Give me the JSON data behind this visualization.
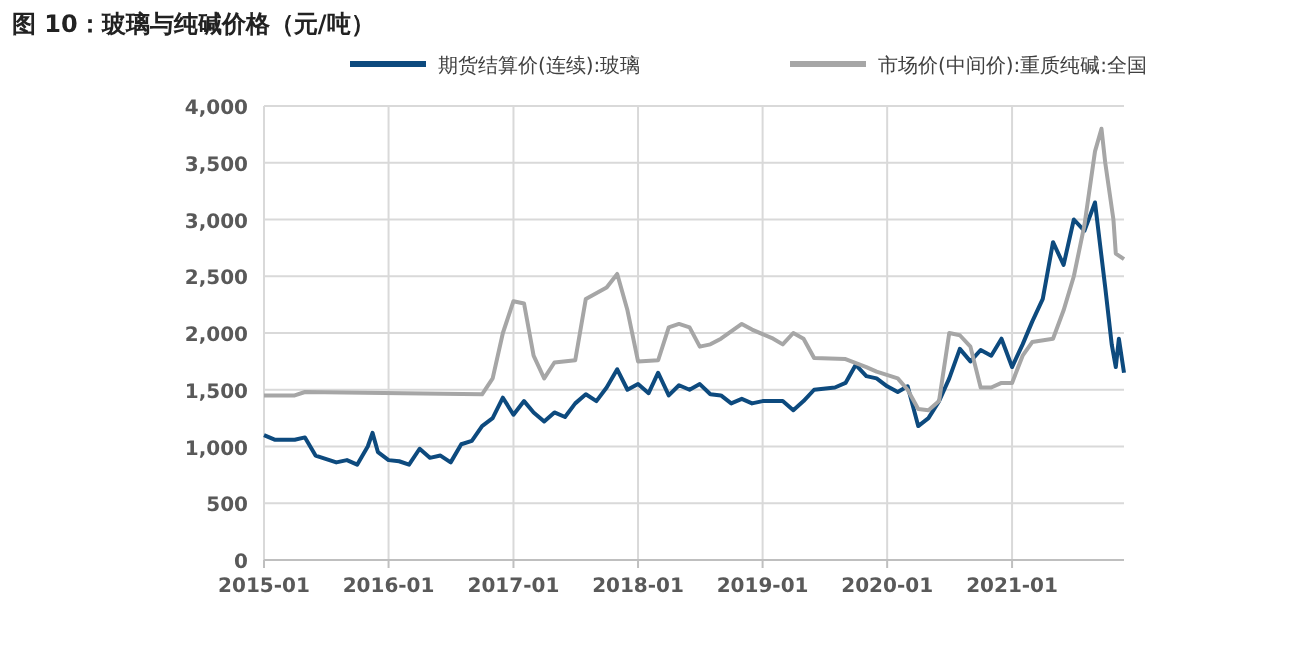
{
  "chart_data": {
    "type": "line",
    "title": "图 10：玻璃与纯碱价格（元/吨）",
    "xlim": [
      "2015-01-01",
      "2021-11-25"
    ],
    "xticks": [
      "2015-01",
      "2016-01",
      "2017-01",
      "2018-01",
      "2019-01",
      "2020-01",
      "2021-01"
    ],
    "ylim": [
      0,
      4000
    ],
    "yticks": [
      {
        "value": 0,
        "label": "0"
      },
      {
        "value": 500,
        "label": "500"
      },
      {
        "value": 1000,
        "label": "1,000"
      },
      {
        "value": 1500,
        "label": "1,500"
      },
      {
        "value": 2000,
        "label": "2,000"
      },
      {
        "value": 2500,
        "label": "2,500"
      },
      {
        "value": 3000,
        "label": "3,000"
      },
      {
        "value": 3500,
        "label": "3,500"
      },
      {
        "value": 4000,
        "label": "4,000"
      }
    ],
    "grid": true,
    "legend": "top",
    "line_style": "solid",
    "marker": "none",
    "series": [
      {
        "name": "期货结算价(连续):玻璃",
        "color": "#0d4a7e",
        "x": [
          "2015-01-01",
          "2015-02-01",
          "2015-04-01",
          "2015-05-01",
          "2015-06-01",
          "2015-08-01",
          "2015-09-01",
          "2015-10-01",
          "2015-11-01",
          "2015-11-15",
          "2015-12-01",
          "2016-01-01",
          "2016-02-01",
          "2016-03-01",
          "2016-04-01",
          "2016-05-01",
          "2016-06-01",
          "2016-07-01",
          "2016-08-01",
          "2016-09-01",
          "2016-10-01",
          "2016-11-01",
          "2016-12-01",
          "2017-01-01",
          "2017-02-01",
          "2017-03-01",
          "2017-04-01",
          "2017-05-01",
          "2017-06-01",
          "2017-07-01",
          "2017-08-01",
          "2017-09-01",
          "2017-10-01",
          "2017-11-01",
          "2017-12-01",
          "2018-01-01",
          "2018-02-01",
          "2018-03-01",
          "2018-04-01",
          "2018-05-01",
          "2018-06-01",
          "2018-07-01",
          "2018-08-01",
          "2018-09-01",
          "2018-10-01",
          "2018-11-01",
          "2018-12-01",
          "2019-01-01",
          "2019-03-01",
          "2019-04-01",
          "2019-05-01",
          "2019-06-01",
          "2019-08-01",
          "2019-09-01",
          "2019-10-01",
          "2019-11-01",
          "2019-12-01",
          "2020-01-01",
          "2020-02-01",
          "2020-03-01",
          "2020-04-01",
          "2020-05-01",
          "2020-06-01",
          "2020-07-01",
          "2020-08-01",
          "2020-09-01",
          "2020-10-01",
          "2020-11-01",
          "2020-12-01",
          "2021-01-01",
          "2021-02-01",
          "2021-03-01",
          "2021-04-01",
          "2021-05-01",
          "2021-06-01",
          "2021-07-01",
          "2021-08-01",
          "2021-09-01",
          "2021-10-01",
          "2021-10-20",
          "2021-11-01",
          "2021-11-10",
          "2021-11-25"
        ],
        "values": [
          1100,
          1060,
          1060,
          1080,
          920,
          860,
          880,
          840,
          1000,
          1120,
          950,
          880,
          870,
          840,
          980,
          900,
          920,
          860,
          1020,
          1050,
          1180,
          1250,
          1430,
          1280,
          1400,
          1300,
          1220,
          1300,
          1260,
          1380,
          1460,
          1400,
          1520,
          1680,
          1500,
          1550,
          1470,
          1650,
          1450,
          1540,
          1500,
          1550,
          1460,
          1450,
          1380,
          1420,
          1380,
          1400,
          1400,
          1320,
          1400,
          1500,
          1520,
          1560,
          1720,
          1620,
          1600,
          1530,
          1480,
          1530,
          1180,
          1250,
          1400,
          1600,
          1860,
          1750,
          1850,
          1800,
          1950,
          1700,
          1900,
          2100,
          2300,
          2800,
          2600,
          3000,
          2900,
          3150,
          2400,
          1900,
          1700,
          1950,
          1650
        ]
      },
      {
        "name": "市场价(中间价):重质纯碱:全国",
        "color": "#a6a6a6",
        "x": [
          "2015-01-01",
          "2015-04-01",
          "2015-05-01",
          "2016-10-01",
          "2016-11-01",
          "2016-12-01",
          "2017-01-01",
          "2017-02-01",
          "2017-03-01",
          "2017-04-01",
          "2017-05-01",
          "2017-07-01",
          "2017-08-01",
          "2017-10-01",
          "2017-11-01",
          "2017-12-01",
          "2018-01-01",
          "2018-03-01",
          "2018-04-01",
          "2018-05-01",
          "2018-06-01",
          "2018-07-01",
          "2018-08-01",
          "2018-09-01",
          "2018-11-01",
          "2018-12-01",
          "2019-02-01",
          "2019-03-01",
          "2019-04-01",
          "2019-05-01",
          "2019-06-01",
          "2019-09-01",
          "2019-11-01",
          "2019-12-01",
          "2020-02-01",
          "2020-03-01",
          "2020-04-01",
          "2020-05-01",
          "2020-06-01",
          "2020-07-01",
          "2020-08-01",
          "2020-09-01",
          "2020-10-01",
          "2020-11-01",
          "2020-12-01",
          "2021-01-01",
          "2021-02-01",
          "2021-03-01",
          "2021-05-01",
          "2021-06-01",
          "2021-07-01",
          "2021-08-01",
          "2021-09-01",
          "2021-09-20",
          "2021-10-01",
          "2021-10-25",
          "2021-11-01",
          "2021-11-25"
        ],
        "values": [
          1450,
          1450,
          1480,
          1460,
          1600,
          2000,
          2280,
          2260,
          1800,
          1600,
          1740,
          1760,
          2300,
          2400,
          2520,
          2200,
          1750,
          1760,
          2050,
          2080,
          2050,
          1880,
          1900,
          1950,
          2080,
          2030,
          1950,
          1900,
          2000,
          1950,
          1780,
          1770,
          1700,
          1660,
          1600,
          1500,
          1330,
          1320,
          1400,
          2000,
          1980,
          1880,
          1520,
          1520,
          1560,
          1560,
          1800,
          1920,
          1950,
          2200,
          2500,
          2950,
          3600,
          3800,
          3500,
          3000,
          2700,
          2650
        ]
      }
    ]
  }
}
